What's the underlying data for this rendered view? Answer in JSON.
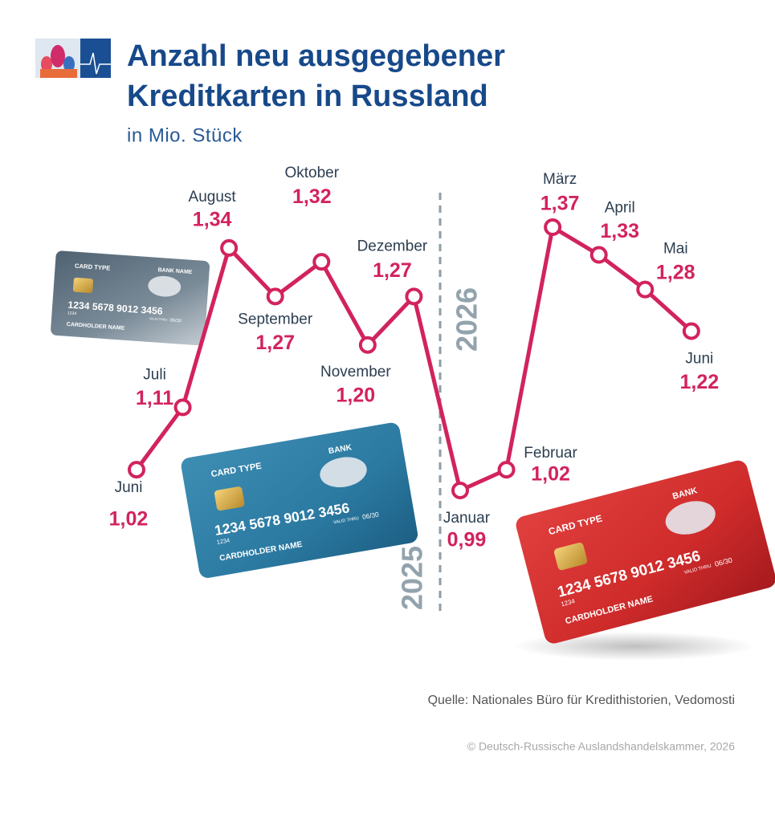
{
  "chart_data": {
    "type": "line",
    "title": [
      "Anzahl neu ausgegebener",
      "Kreditkarten in Russland"
    ],
    "subtitle": "in Mio. Stück",
    "categories": [
      "Juni",
      "Juli",
      "August",
      "September",
      "Oktober",
      "November",
      "Dezember",
      "Januar",
      "Februar",
      "März",
      "April",
      "Mai",
      "Juni"
    ],
    "values": [
      1.02,
      1.11,
      1.34,
      1.27,
      1.32,
      1.2,
      1.27,
      0.99,
      1.02,
      1.37,
      1.33,
      1.28,
      1.22
    ],
    "value_labels": [
      "1,02",
      "1,11",
      "1,34",
      "1,27",
      "1,32",
      "1,20",
      "1,27",
      "0,99",
      "1,02",
      "1,37",
      "1,33",
      "1,28",
      "1,22"
    ],
    "color": "#d2235c",
    "years": [
      "2025",
      "2026"
    ],
    "source": "Quelle: Nationales Büro für Kredithistorien, Vedomosti",
    "copyright": "© Deutsch-Russische Auslandshandelskammer, 2026"
  },
  "cards": [
    {
      "card_type": "CARD TYPE",
      "bank": "BANK NAME",
      "number": "1234 5678 9012 3456",
      "short": "1234",
      "valid": "VALID THRU",
      "date": "06/30",
      "holder": "CARDHOLDER NAME"
    },
    {
      "card_type": "CARD TYPE",
      "bank": "BANK",
      "number": "1234 5678 9012 3456",
      "short": "1234",
      "valid": "VALID THRU",
      "date": "06/30",
      "holder": "CARDHOLDER NAME"
    },
    {
      "card_type": "CARD TYPE",
      "bank": "BANK",
      "number": "1234 5678 9012 3456",
      "short": "1234",
      "valid": "VALID THRU",
      "date": "06/30",
      "holder": "CARDHOLDER NAME"
    }
  ]
}
